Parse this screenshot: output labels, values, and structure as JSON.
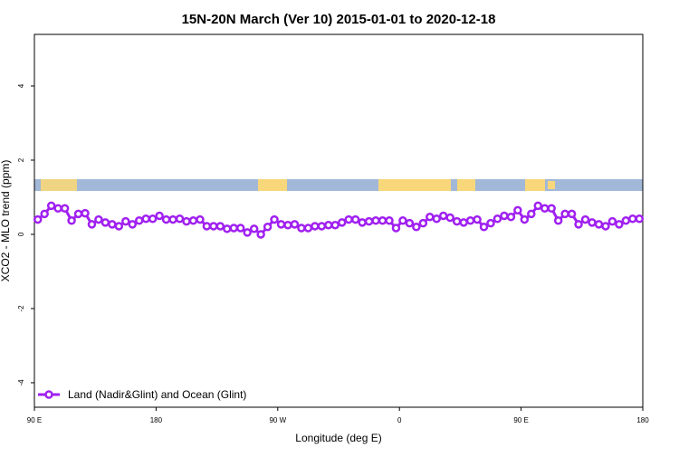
{
  "chart_data": {
    "type": "line",
    "title": "15N-20N March (Ver 10)   2015-01-01 to 2020-12-18",
    "x_label": "Longitude (deg E)",
    "y_label": "XCO2 - MLO trend (ppm)",
    "x": [
      92.5,
      97.5,
      102.5,
      107.5,
      112.5,
      117.5,
      122.5,
      127.5,
      132.5,
      137.5,
      142.5,
      147.5,
      152.5,
      157.5,
      162.5,
      167.5,
      172.5,
      177.5,
      182.5,
      187.5,
      192.5,
      197.5,
      202.5,
      207.5,
      212.5,
      217.5,
      222.5,
      227.5,
      232.5,
      237.5,
      242.5,
      247.5,
      252.5,
      257.5,
      262.5,
      267.5,
      272.5,
      277.5,
      282.5,
      287.5,
      292.5,
      297.5,
      302.5,
      307.5,
      312.5,
      317.5,
      322.5,
      327.5,
      332.5,
      337.5,
      342.5,
      347.5,
      352.5,
      357.5,
      362.5,
      367.5,
      372.5,
      377.5,
      382.5,
      387.5,
      392.5,
      397.5,
      402.5,
      407.5,
      412.5,
      417.5,
      422.5,
      427.5,
      432.5,
      437.5,
      442.5,
      447.5,
      452.5,
      457.5,
      462.5,
      467.5,
      472.5,
      477.5,
      482.5,
      487.5,
      492.5,
      497.5,
      502.5,
      507.5,
      512.5,
      517.5,
      522.5,
      527.5,
      532.5,
      537.5
    ],
    "series": [
      {
        "name": "Land (Nadir&Glint) and Ocean (Glint)",
        "color": "#a020f0",
        "values": [
          0.4,
          0.55,
          0.77,
          0.7,
          0.7,
          0.37,
          0.55,
          0.57,
          0.27,
          0.4,
          0.32,
          0.27,
          0.22,
          0.35,
          0.27,
          0.37,
          0.42,
          0.42,
          0.5,
          0.4,
          0.4,
          0.42,
          0.35,
          0.37,
          0.4,
          0.22,
          0.22,
          0.22,
          0.15,
          0.17,
          0.17,
          0.05,
          0.15,
          0.0,
          0.2,
          0.4,
          0.27,
          0.25,
          0.27,
          0.17,
          0.17,
          0.22,
          0.22,
          0.25,
          0.25,
          0.32,
          0.4,
          0.4,
          0.32,
          0.35,
          0.37,
          0.37,
          0.37,
          0.17,
          0.37,
          0.3,
          0.2,
          0.3,
          0.47,
          0.42,
          0.5,
          0.45,
          0.35,
          0.32,
          0.37,
          0.4,
          0.2,
          0.3,
          0.42,
          0.5,
          0.47,
          0.65,
          0.4,
          0.55,
          0.77,
          0.7,
          0.7,
          0.37,
          0.55,
          0.55,
          0.27,
          0.4,
          0.32,
          0.27,
          0.22,
          0.35,
          0.27,
          0.37,
          0.42,
          0.42
        ]
      }
    ],
    "xlim": [
      90,
      540
    ],
    "xticks": [
      {
        "value": 90,
        "label": "90 E"
      },
      180,
      {
        "value": 270,
        "label": "90 W"
      },
      {
        "value": 360,
        "label": "0"
      },
      {
        "value": 450,
        "label": "90 E"
      },
      {
        "value": 540,
        "label": "180"
      }
    ],
    "ylim": [
      -4.66,
      5.39
    ],
    "yticks": [
      -4,
      -2,
      0,
      2,
      4
    ],
    "legend": "bottom-left"
  }
}
